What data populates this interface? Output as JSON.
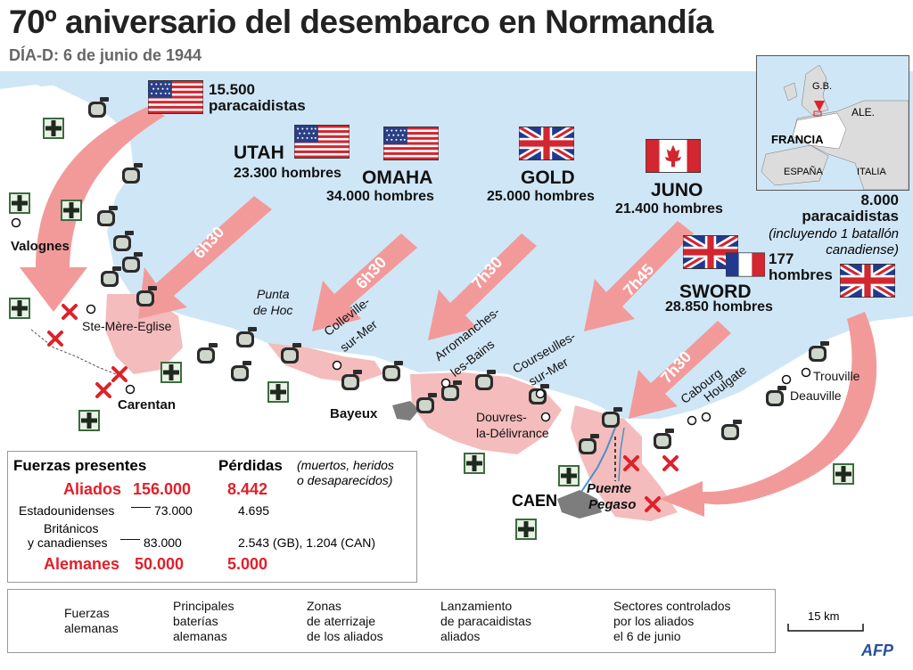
{
  "title": "70º aniversario del desembarco en Normandía",
  "subtitle": "DÍA-D: 6 de junio de 1944",
  "us_paratroopers": {
    "count": "15.500",
    "label": "paracaidistas"
  },
  "beaches": {
    "utah": {
      "name": "UTAH",
      "men": "23.300 hombres",
      "time": "6h30"
    },
    "omaha": {
      "name": "OMAHA",
      "men": "34.000 hombres",
      "time": "6h30"
    },
    "gold": {
      "name": "GOLD",
      "men": "25.000 hombres",
      "time": "7h30"
    },
    "juno": {
      "name": "JUNO",
      "men": "21.400 hombres",
      "time": "7h45"
    },
    "sword": {
      "name": "SWORD",
      "men": "28.850 hombres",
      "time": "7h30",
      "french_count": "177",
      "french_label": "hombres"
    }
  },
  "british_paratroopers": {
    "count": "8.000",
    "label": "paracaidistas",
    "note_1": "(incluyendo 1 batallón",
    "note_2": "canadiense)"
  },
  "places": {
    "valognes": "Valognes",
    "ste_mere_eglise": "Ste-Mère-Eglise",
    "carentan": "Carentan",
    "punta_de_hoc_1": "Punta",
    "punta_de_hoc_2": "de Hoc",
    "colleville_1": "Colleville-",
    "colleville_2": "sur-Mer",
    "arromanches_1": "Arromanches-",
    "arromanches_2": "les-Bains",
    "courseulles_1": "Courseulles-",
    "courseulles_2": "sur-Mer",
    "bayeux": "Bayeux",
    "douvres_1": "Douvres-",
    "douvres_2": "la-Délivrance",
    "caen": "CAEN",
    "puente_pegaso_1": "Puente",
    "puente_pegaso_2": "Pegaso",
    "cabourg": "Cabourg",
    "houlgate": "Houlgate",
    "trouville": "Trouville",
    "deauville": "Deauville"
  },
  "inset": {
    "gb": "G.B.",
    "ale": "ALE.",
    "francia": "FRANCIA",
    "espana": "ESPAÑA",
    "italia": "ITALIA"
  },
  "forces": {
    "header": "Fuerzas presentes",
    "losses_header": "Pérdidas",
    "losses_note_1": "(muertos, heridos",
    "losses_note_2": "o desaparecidos)",
    "rows": [
      {
        "label": "Aliados",
        "value": "156.000",
        "losses": "8.442"
      },
      {
        "label": "Estadounidenses",
        "value": "73.000",
        "losses": "4.695"
      },
      {
        "label": "Británicos",
        "label_2": "y canadienses",
        "value": "83.000",
        "losses": "2.543 (GB), 1.204 (CAN)"
      },
      {
        "label": "Alemanes",
        "value": "50.000",
        "losses": "5.000"
      }
    ]
  },
  "legend": {
    "german_forces_1": "Fuerzas",
    "german_forces_2": "alemanas",
    "batteries_1": "Principales",
    "batteries_2": "baterías",
    "batteries_3": "alemanas",
    "landing_1": "Zonas",
    "landing_2": "de aterrizaje",
    "landing_3": "de los aliados",
    "para_1": "Lanzamiento",
    "para_2": "de paracaidistas",
    "para_3": "aliados",
    "sectors_1": "Sectores controlados",
    "sectors_2": "por los aliados",
    "sectors_3": "el 6 de junio"
  },
  "scale": "15 km",
  "credit": "AFP",
  "colors": {
    "sea": "#cfe6f6",
    "land": "#ffffff",
    "allied": "#f4a6a6",
    "arrow": "#f29a9a",
    "red": "#e0202a",
    "german_box": "#3c6b3f"
  }
}
